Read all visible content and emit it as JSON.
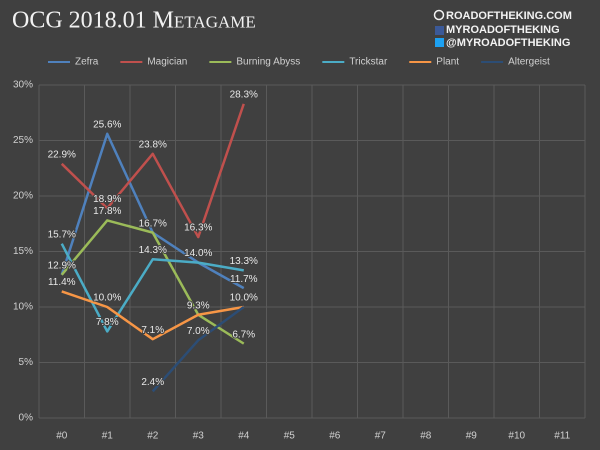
{
  "chart_data": {
    "type": "line",
    "title": "OCG 2018.01 Metagame",
    "brand": [
      "ROADOFTHEKING.COM",
      "MYROADOFTHEKING",
      "@MYROADOFTHEKING"
    ],
    "categories": [
      "#0",
      "#1",
      "#2",
      "#3",
      "#4",
      "#5",
      "#6",
      "#7",
      "#8",
      "#9",
      "#10",
      "#11"
    ],
    "ylim": [
      0,
      30
    ],
    "yticks": [
      {
        "value": 0,
        "label": "0%"
      },
      {
        "value": 5,
        "label": "5%"
      },
      {
        "value": 10,
        "label": "10%"
      },
      {
        "value": 15,
        "label": "15%"
      },
      {
        "value": 20,
        "label": "20%"
      },
      {
        "value": 25,
        "label": "25%"
      },
      {
        "value": 30,
        "label": "30%"
      }
    ],
    "grid": true,
    "legend": "top",
    "series": [
      {
        "name": "Zefra",
        "color": "#4f81bd",
        "values": [
          12.9,
          25.6,
          16.7,
          14.0,
          11.7,
          null,
          null,
          null,
          null,
          null,
          null,
          null
        ],
        "value_labels": [
          null,
          "25.6%",
          null,
          null,
          "11.7%",
          null,
          null,
          null,
          null,
          null,
          null,
          null
        ]
      },
      {
        "name": "Magician",
        "color": "#c0504d",
        "values": [
          22.9,
          18.9,
          23.8,
          16.3,
          28.3,
          null,
          null,
          null,
          null,
          null,
          null,
          null
        ],
        "value_labels": [
          "22.9%",
          "18.9%",
          "23.8%",
          "16.3%",
          "28.3%",
          null,
          null,
          null,
          null,
          null,
          null,
          null
        ]
      },
      {
        "name": "Burning Abyss",
        "color": "#9bbb59",
        "values": [
          12.9,
          17.8,
          16.7,
          9.3,
          6.7,
          null,
          null,
          null,
          null,
          null,
          null,
          null
        ],
        "value_labels": [
          "12.9%",
          "17.8%",
          "16.7%",
          null,
          "6.7%",
          null,
          null,
          null,
          null,
          null,
          null,
          null
        ]
      },
      {
        "name": "Trickstar",
        "color": "#4bacc6",
        "values": [
          15.7,
          7.8,
          14.3,
          14.0,
          13.3,
          null,
          null,
          null,
          null,
          null,
          null,
          null
        ],
        "value_labels": [
          "15.7%",
          "7.8%",
          "14.3%",
          "14.0%",
          "13.3%",
          null,
          null,
          null,
          null,
          null,
          null,
          null
        ]
      },
      {
        "name": "Plant",
        "color": "#f79646",
        "values": [
          11.4,
          10.0,
          7.1,
          9.3,
          10.0,
          null,
          null,
          null,
          null,
          null,
          null,
          null
        ],
        "value_labels": [
          "11.4%",
          "10.0%",
          "7.1%",
          "9.3%",
          "10.0%",
          null,
          null,
          null,
          null,
          null,
          null,
          null
        ]
      },
      {
        "name": "Altergeist",
        "color": "#2c4d75",
        "values": [
          null,
          null,
          2.4,
          7.0,
          10.0,
          null,
          null,
          null,
          null,
          null,
          null,
          null
        ],
        "value_labels": [
          null,
          null,
          "2.4%",
          "7.0%",
          null,
          null,
          null,
          null,
          null,
          null,
          null,
          null
        ]
      }
    ]
  }
}
